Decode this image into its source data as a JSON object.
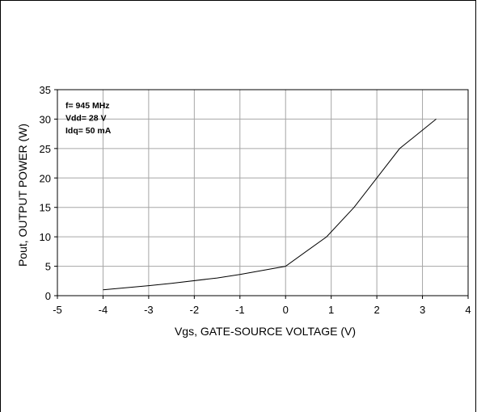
{
  "chart_data": {
    "type": "line",
    "title": "",
    "xlabel": "Vgs, GATE-SOURCE VOLTAGE (V)",
    "ylabel": "Pout, OUTPUT POWER (W)",
    "xlim": [
      -5,
      4
    ],
    "ylim": [
      0,
      35
    ],
    "xticks": [
      -5,
      -4,
      -3,
      -2,
      -1,
      0,
      1,
      2,
      3,
      4
    ],
    "yticks": [
      0,
      5,
      10,
      15,
      20,
      25,
      30,
      35
    ],
    "xtick_labels": [
      "-5",
      "-4",
      "-3",
      "-2",
      "-1",
      "0",
      "1",
      "2",
      "3",
      "4"
    ],
    "ytick_labels": [
      "0",
      "5",
      "10",
      "15",
      "20",
      "25",
      "30",
      "35"
    ],
    "grid": true,
    "legend": "none",
    "annotations": [
      "f= 945 MHz",
      "Vdd= 28 V",
      "Idq= 50 mA"
    ],
    "series": [
      {
        "color": "#000000",
        "x": [
          -4,
          -3,
          -2.5,
          -1.5,
          -1,
          0,
          0.9,
          1.5,
          2,
          2.5,
          3.3
        ],
        "y": [
          1,
          1.7,
          2.1,
          3,
          3.6,
          5,
          10,
          15,
          20,
          25,
          30
        ]
      }
    ]
  }
}
